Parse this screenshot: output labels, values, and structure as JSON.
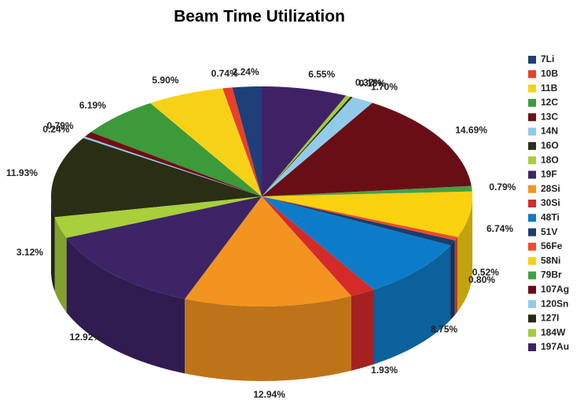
{
  "chart_data": {
    "type": "pie",
    "title": "Beam Time Utilization",
    "categories": [
      "7Li",
      "10B",
      "11B",
      "12C",
      "13C",
      "14N",
      "16O",
      "18O",
      "19F",
      "28Si",
      "30Si",
      "48Ti",
      "51V",
      "56Fe",
      "58Ni",
      "79Br",
      "107Ag",
      "120Sn",
      "127I",
      "184W",
      "197Au"
    ],
    "values": [
      2.24,
      0.74,
      5.9,
      6.19,
      0.79,
      0.24,
      11.93,
      3.12,
      12.92,
      12.94,
      1.93,
      8.75,
      0.8,
      0.52,
      6.74,
      0.79,
      14.69,
      1.7,
      0.18,
      0.37,
      6.55
    ],
    "value_labels": [
      "2.24%",
      "0.74%",
      "5.90%",
      "6.19%",
      "0.79%",
      "0.24%",
      "11.93%",
      "3.12%",
      "12.92%",
      "12.94%",
      "1.93%",
      "8.75%",
      "0.80%",
      "0.52%",
      "6.74%",
      "0.79%",
      "14.69%",
      "1.70%",
      "0.18%",
      "0.37%",
      "6.55%"
    ],
    "colors": [
      "#1f3f7a",
      "#e8402a",
      "#f7d117",
      "#3c9a3a",
      "#6e0f14",
      "#8ec9ee",
      "#2a2e15",
      "#a8cf3c",
      "#3d2466",
      "#f39420",
      "#d42a2a",
      "#0d7cc8",
      "#1a3d6e",
      "#ee4b2b",
      "#fad10f",
      "#45a045",
      "#6a0e16",
      "#92cbea",
      "#25290f",
      "#a5cb3a",
      "#3e2265"
    ]
  }
}
